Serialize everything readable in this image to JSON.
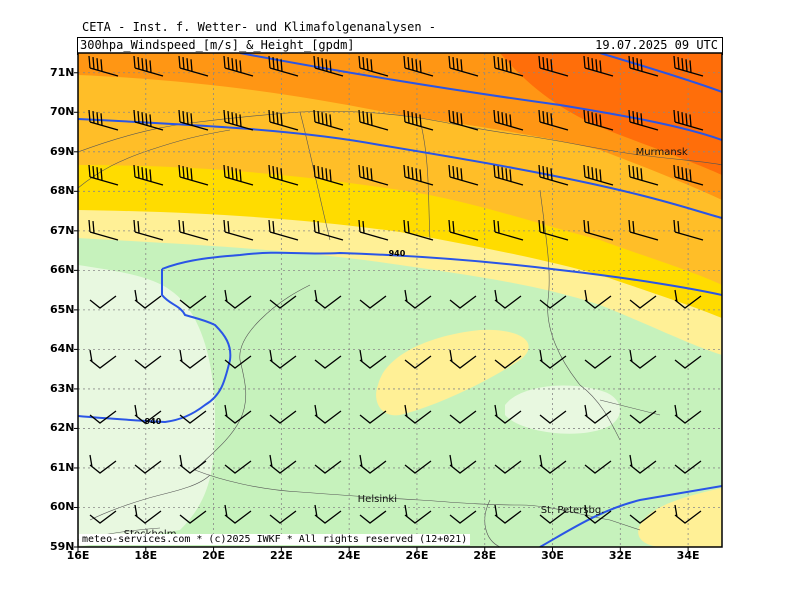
{
  "header": {
    "source": "CETA - Inst. f. Wetter- und Klimafolgenanalysen -",
    "product": "300hpa_Windspeed_[m/s]_&_Height_[gpdm]",
    "valid_time": "19.07.2025 09 UTC"
  },
  "map": {
    "lon_range": [
      16,
      35
    ],
    "lat_range": [
      59,
      71.5
    ],
    "lat_labels": [
      "59N",
      "60N",
      "61N",
      "62N",
      "63N",
      "64N",
      "65N",
      "66N",
      "67N",
      "68N",
      "69N",
      "70N",
      "71N"
    ],
    "lon_labels": [
      "16E",
      "18E",
      "20E",
      "22E",
      "24E",
      "26E",
      "28E",
      "30E",
      "32E",
      "34E"
    ],
    "cities": [
      {
        "name": "Murmansk",
        "lon": 33.1,
        "lat": 68.97
      },
      {
        "name": "Helsinki",
        "lon": 24.9,
        "lat": 60.2
      },
      {
        "name": "St. Petersbg.",
        "lon": 30.3,
        "lat": 59.9
      },
      {
        "name": "Stockholm",
        "lon": 18.0,
        "lat": 59.3
      }
    ],
    "contour_labels": [
      {
        "text": "940",
        "lon": 25.4,
        "lat": 66.4
      },
      {
        "text": "940",
        "lon": 18.2,
        "lat": 62.15
      }
    ],
    "colors": {
      "light_green": "#e8f8e0",
      "green": "#c6f2bc",
      "pale_yellow": "#fff096",
      "yellow": "#ffdc00",
      "light_orange": "#ffbe28",
      "orange": "#ff9614",
      "dark_orange": "#ff6e0a",
      "contour": "#2a55e6"
    },
    "footer": "meteo-services.com * (c)2025 IWKF * All rights reserved (12+021)"
  }
}
